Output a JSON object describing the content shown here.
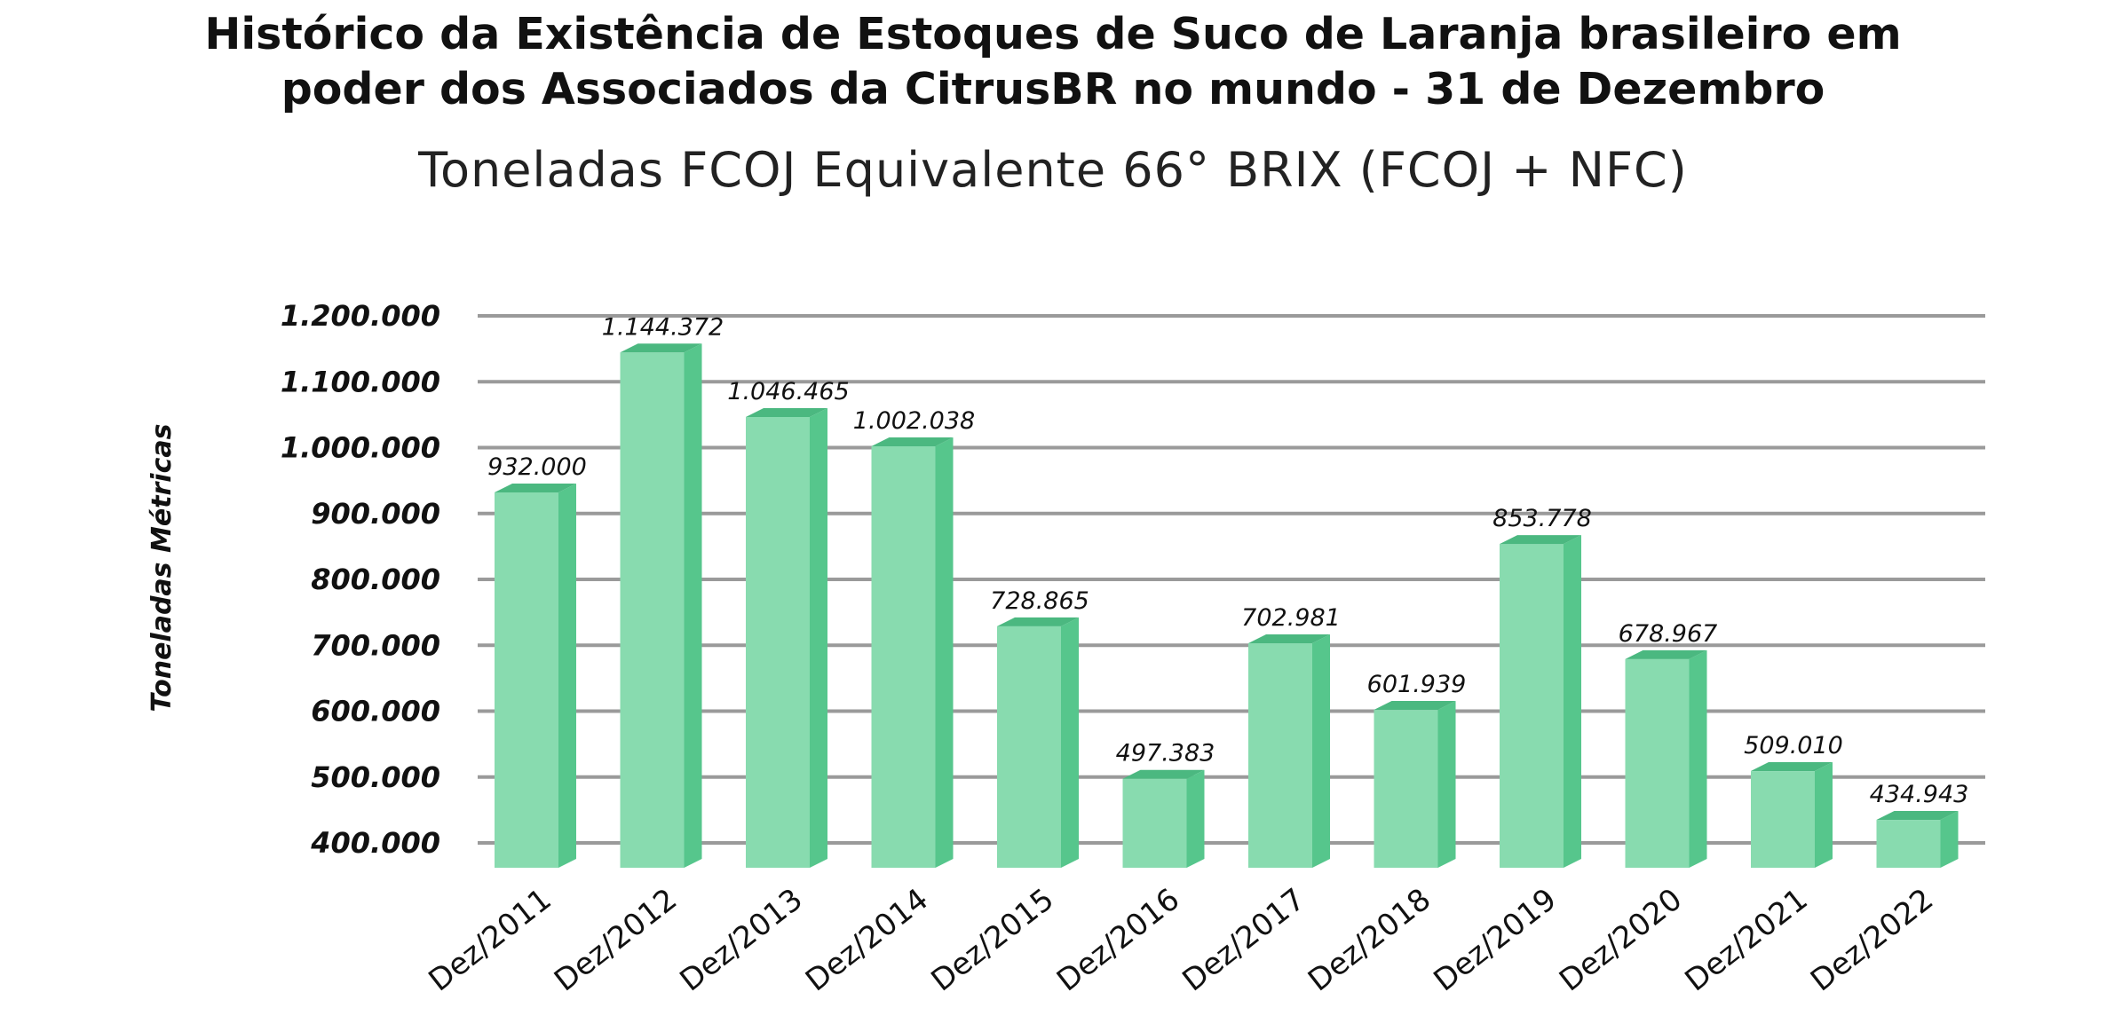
{
  "chart_data": {
    "type": "bar",
    "title_lines": [
      "Histórico da Existência de Estoques de Suco de Laranja brasileiro em",
      "poder dos Associados da CitrusBR no mundo - 31 de Dezembro"
    ],
    "subtitle": "Toneladas FCOJ Equivalente 66° BRIX (FCOJ + NFC)",
    "xlabel": "",
    "ylabel": "Toneladas Métricas",
    "ylim": [
      400000,
      1200000
    ],
    "yticks": [
      400000,
      500000,
      600000,
      700000,
      800000,
      900000,
      1000000,
      1100000,
      1200000
    ],
    "ytick_labels": [
      "400.000",
      "500.000",
      "600.000",
      "700.000",
      "800.000",
      "900.000",
      "1.000.000",
      "1.100.000",
      "1.200.000"
    ],
    "categories": [
      "Dez/2011",
      "Dez/2012",
      "Dez/2013",
      "Dez/2014",
      "Dez/2015",
      "Dez/2016",
      "Dez/2017",
      "Dez/2018",
      "Dez/2019",
      "Dez/2020",
      "Dez/2021",
      "Dez/2022"
    ],
    "values": [
      932000,
      1144372,
      1046465,
      1002038,
      728865,
      497383,
      702981,
      601939,
      853778,
      678967,
      509010,
      434943
    ],
    "value_labels": [
      "932.000",
      "1.144.372",
      "1.046.465",
      "1.002.038",
      "728.865",
      "497.383",
      "702.981",
      "601.939",
      "853.778",
      "678.967",
      "509.010",
      "434.943"
    ],
    "grid": true,
    "colors": {
      "bar_front": "#88dbaf",
      "bar_side": "#56c68c",
      "bar_top": "#4bb880",
      "gridline": "#9a9a9a"
    }
  }
}
